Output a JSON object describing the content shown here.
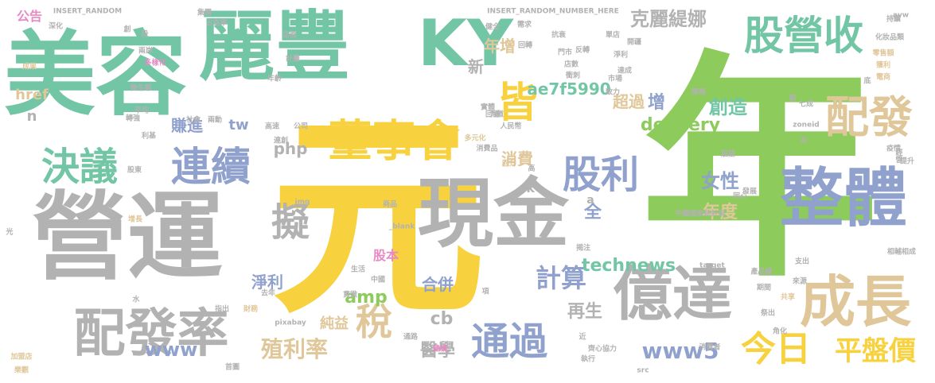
{
  "palette": {
    "yellow": "#f7d23e",
    "green": "#8dcb5c",
    "teal": "#72c6a6",
    "gray": "#b2b2b2",
    "tan": "#e0c79a",
    "blue": "#8fa1cc",
    "pink": "#e78ac3",
    "orange": "#fc8d62"
  },
  "words": [
    {
      "text": "元",
      "color": "yellow"
    },
    {
      "text": "年",
      "color": "green"
    },
    {
      "text": "營運",
      "color": "gray"
    },
    {
      "text": "美容",
      "color": "teal"
    },
    {
      "text": "麗豐",
      "color": "teal"
    },
    {
      "text": "KY",
      "color": "teal"
    },
    {
      "text": "現金",
      "color": "gray"
    },
    {
      "text": "整體",
      "color": "blue"
    },
    {
      "text": "億達",
      "color": "gray"
    },
    {
      "text": "成長",
      "color": "tan"
    },
    {
      "text": "配發率",
      "color": "gray"
    },
    {
      "text": "董事會",
      "color": "yellow"
    },
    {
      "text": "連續",
      "color": "blue"
    },
    {
      "text": "決議",
      "color": "teal"
    },
    {
      "text": "股營收",
      "color": "teal"
    },
    {
      "text": "配發",
      "color": "tan"
    },
    {
      "text": "皆",
      "color": "yellow"
    },
    {
      "text": "擬",
      "color": "gray"
    },
    {
      "text": "股利",
      "color": "blue"
    },
    {
      "text": "稅",
      "color": "tan"
    },
    {
      "text": "通過",
      "color": "blue"
    },
    {
      "text": "今日",
      "color": "yellow"
    },
    {
      "text": "平盤價",
      "color": "yellow"
    },
    {
      "text": "計算",
      "color": "blue"
    },
    {
      "text": "殖利率",
      "color": "tan"
    },
    {
      "text": "technews",
      "color": "teal"
    },
    {
      "text": "delivery",
      "color": "green"
    },
    {
      "text": "www5",
      "color": "blue"
    },
    {
      "text": "www",
      "color": "blue"
    },
    {
      "text": "ae7f5990",
      "color": "teal"
    },
    {
      "text": "克麗緹娜",
      "color": "gray"
    },
    {
      "text": "女性",
      "color": "blue"
    },
    {
      "text": "年度",
      "color": "tan"
    },
    {
      "text": "創造",
      "color": "teal"
    },
    {
      "text": "amp",
      "color": "green"
    },
    {
      "text": "醫學",
      "color": "gray"
    },
    {
      "text": "再生",
      "color": "gray"
    },
    {
      "text": "php",
      "color": "gray"
    },
    {
      "text": "cb",
      "color": "gray"
    },
    {
      "text": "淨利",
      "color": "blue"
    },
    {
      "text": "合併",
      "color": "blue"
    },
    {
      "text": "股本",
      "color": "pink"
    },
    {
      "text": "純益",
      "color": "tan"
    },
    {
      "text": "消費",
      "color": "tan"
    },
    {
      "text": "超過",
      "color": "tan"
    },
    {
      "text": "賺進",
      "color": "blue"
    },
    {
      "text": "新",
      "color": "gray"
    },
    {
      "text": "年增",
      "color": "tan"
    },
    {
      "text": "全",
      "color": "blue"
    },
    {
      "text": "增",
      "color": "blue"
    },
    {
      "text": "tw",
      "color": "blue"
    },
    {
      "text": "公告",
      "color": "pink"
    },
    {
      "text": "href",
      "color": "tan"
    },
    {
      "text": "n",
      "color": "gray"
    },
    {
      "text": "ck",
      "color": "gray"
    },
    {
      "text": "a",
      "color": "gray"
    },
    {
      "text": "INSERT_RANDOM",
      "color": "gray"
    },
    {
      "text": "INSERT_RANDOM_NUMBER_HERE",
      "color": "gray"
    },
    {
      "text": "持續",
      "color": "gray"
    },
    {
      "text": "化妝品類",
      "color": "gray"
    },
    {
      "text": "零售額",
      "color": "tan"
    },
    {
      "text": "獲利",
      "color": "tan"
    },
    {
      "text": "電商",
      "color": "tan"
    },
    {
      "text": "疫情",
      "color": "gray"
    },
    {
      "text": "提升",
      "color": "gray"
    },
    {
      "text": "經營",
      "color": "gray"
    },
    {
      "text": "相輔相成",
      "color": "gray"
    },
    {
      "text": "支出",
      "color": "gray"
    },
    {
      "text": "來源",
      "color": "gray"
    },
    {
      "text": "共享",
      "color": "tan"
    },
    {
      "text": "產品線",
      "color": "gray"
    },
    {
      "text": "期間",
      "color": "gray"
    },
    {
      "text": "祭出",
      "color": "gray"
    },
    {
      "text": "角化",
      "color": "gray"
    },
    {
      "text": "消費者",
      "color": "gray"
    },
    {
      "text": "執行",
      "color": "gray"
    },
    {
      "text": "齊心協力",
      "color": "gray"
    },
    {
      "text": "src",
      "color": "gray"
    },
    {
      "text": "target",
      "color": "gray"
    },
    {
      "text": "首圖",
      "color": "gray"
    },
    {
      "text": "加盟店",
      "color": "tan"
    },
    {
      "text": "樂觀",
      "color": "tan"
    },
    {
      "text": "增長",
      "color": "tan"
    },
    {
      "text": "財務",
      "color": "tan"
    },
    {
      "text": "指出",
      "color": "gray"
    },
    {
      "text": "pixabay",
      "color": "gray"
    },
    {
      "text": "去年",
      "color": "gray"
    },
    {
      "text": "生活",
      "color": "gray"
    },
    {
      "text": "中國",
      "color": "gray"
    },
    {
      "text": "貫徹",
      "color": "gray"
    },
    {
      "text": "_blank",
      "color": "gray"
    },
    {
      "text": "img",
      "color": "gray"
    },
    {
      "text": "股東",
      "color": "gray"
    },
    {
      "text": "利基",
      "color": "gray"
    },
    {
      "text": "轉強",
      "color": "gray"
    },
    {
      "text": "平均",
      "color": "gray"
    },
    {
      "text": "成果",
      "color": "tan"
    },
    {
      "text": "兩岸",
      "color": "gray"
    },
    {
      "text": "多樣化",
      "color": "pink"
    },
    {
      "text": "深化",
      "color": "gray"
    },
    {
      "text": "集團",
      "color": "gray"
    },
    {
      "text": "占有率",
      "color": "gray"
    },
    {
      "text": "店面",
      "color": "gray"
    },
    {
      "text": "計畫",
      "color": "gray"
    },
    {
      "text": "年齡",
      "color": "gray"
    },
    {
      "text": "微生態",
      "color": "gray"
    },
    {
      "text": "社會",
      "color": "gray"
    },
    {
      "text": "兩動",
      "color": "gray"
    },
    {
      "text": "高速",
      "color": "gray"
    },
    {
      "text": "連創",
      "color": "gray"
    },
    {
      "text": "公司",
      "color": "gray"
    },
    {
      "text": "實體",
      "color": "gray"
    },
    {
      "text": "回穩",
      "color": "gray"
    },
    {
      "text": "力道",
      "color": "gray"
    },
    {
      "text": "多元化",
      "color": "tan"
    },
    {
      "text": "人民幣",
      "color": "gray"
    },
    {
      "text": "消費品",
      "color": "gray"
    },
    {
      "text": "回升",
      "color": "tan"
    },
    {
      "text": "揭注",
      "color": "gray"
    },
    {
      "text": "中國國家統計局",
      "color": "gray"
    },
    {
      "text": "發展",
      "color": "gray"
    },
    {
      "text": "同心",
      "color": "gray"
    },
    {
      "text": "展望",
      "color": "gray"
    },
    {
      "text": "zoneid",
      "color": "gray"
    },
    {
      "text": "兆",
      "color": "gray"
    },
    {
      "text": "七成",
      "color": "gray"
    },
    {
      "text": "期",
      "color": "gray"
    },
    {
      "text": "底",
      "color": "gray"
    },
    {
      "text": "策略",
      "color": "gray"
    },
    {
      "text": "致力",
      "color": "gray"
    },
    {
      "text": "市場",
      "color": "gray"
    },
    {
      "text": "達成",
      "color": "gray"
    },
    {
      "text": "衝刺",
      "color": "gray"
    },
    {
      "text": "反轉",
      "color": "gray"
    },
    {
      "text": "店數",
      "color": "gray"
    },
    {
      "text": "回轉",
      "color": "gray"
    },
    {
      "text": "門市",
      "color": "gray"
    },
    {
      "text": "單店",
      "color": "gray"
    },
    {
      "text": "淨利",
      "color": "gray"
    },
    {
      "text": "開疆",
      "color": "gray"
    },
    {
      "text": "抗衰",
      "color": "gray"
    },
    {
      "text": "需求",
      "color": "gray"
    },
    {
      "text": "健全",
      "color": "gray"
    },
    {
      "text": "avw",
      "color": "gray"
    },
    {
      "text": "創",
      "color": "gray"
    },
    {
      "text": "段",
      "color": "gray"
    },
    {
      "text": "項",
      "color": "gray"
    },
    {
      "text": "近",
      "color": "gray"
    },
    {
      "text": "高",
      "color": "gray"
    },
    {
      "text": "通路",
      "color": "gray"
    },
    {
      "text": "建構",
      "color": "pink"
    },
    {
      "text": "商品",
      "color": "gray"
    },
    {
      "text": "水",
      "color": "gray"
    },
    {
      "text": "光",
      "color": "gray"
    }
  ]
}
